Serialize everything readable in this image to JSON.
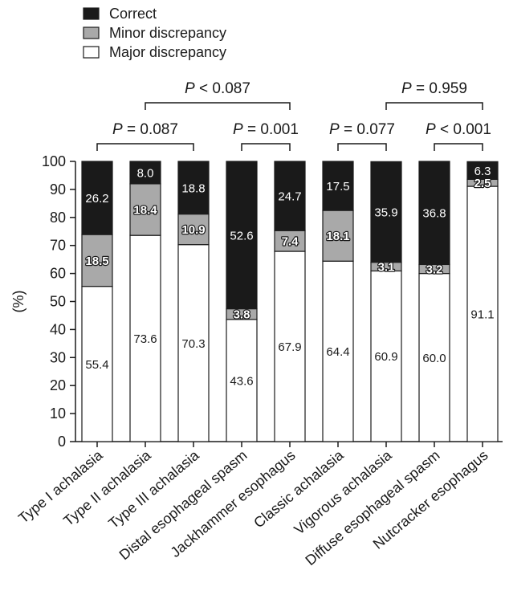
{
  "chart_data": {
    "type": "bar",
    "stacked": true,
    "ylabel": "(%)",
    "ylim": [
      0,
      100
    ],
    "yticks": [
      "0",
      "10",
      "20",
      "30",
      "40",
      "50",
      "60",
      "70",
      "80",
      "90",
      "100"
    ],
    "categories": [
      "Type I achalasia",
      "Type II achalasia",
      "Type III achalasia",
      "Distal esophageal spasm",
      "Jackhammer esophagus",
      "Classic achalasia",
      "Vigorous achalasia",
      "Diffuse esophageal spasm",
      "Nutcracker esophagus"
    ],
    "series": [
      {
        "name": "Major discrepancy",
        "color": "#ffffff",
        "values": [
          55.4,
          73.6,
          70.3,
          43.6,
          67.9,
          64.4,
          60.9,
          60.0,
          91.1
        ],
        "labels": [
          "55.4",
          "73.6",
          "70.3",
          "43.6",
          "67.9",
          "64.4",
          "60.9",
          "60.0",
          "91.1"
        ]
      },
      {
        "name": "Minor discrepancy",
        "color": "#a9a9a9",
        "values": [
          18.5,
          18.4,
          10.9,
          3.8,
          7.4,
          18.1,
          3.1,
          3.2,
          2.5
        ],
        "labels": [
          "18.5",
          "18.4",
          "10.9",
          "3.8",
          "7.4",
          "18.1",
          "3.1",
          "3.2",
          "2.5"
        ]
      },
      {
        "name": "Correct",
        "color": "#1a1a1a",
        "values": [
          26.2,
          8.0,
          18.8,
          52.6,
          24.7,
          17.5,
          35.9,
          36.8,
          6.3
        ],
        "labels": [
          "26.2",
          "8.0",
          "18.8",
          "52.6",
          "24.7",
          "17.5",
          "35.9",
          "36.8",
          "6.3"
        ]
      }
    ],
    "legend": {
      "placement": "top-left",
      "order": [
        "Correct",
        "Minor discrepancy",
        "Major discrepancy"
      ]
    },
    "comparisons": [
      {
        "from": 0,
        "to": 2,
        "level": 1,
        "label": "P = 0.087"
      },
      {
        "from": 3,
        "to": 4,
        "level": 1,
        "label": "P = 0.001"
      },
      {
        "from": 5,
        "to": 6,
        "level": 1,
        "label": "P = 0.077"
      },
      {
        "from": 7,
        "to": 8,
        "level": 1,
        "label": "P < 0.001"
      },
      {
        "from": 1,
        "to": 4,
        "level": 2,
        "label": "P < 0.087"
      },
      {
        "from": 6,
        "to": 8,
        "level": 2,
        "label": "P = 0.959"
      }
    ]
  }
}
